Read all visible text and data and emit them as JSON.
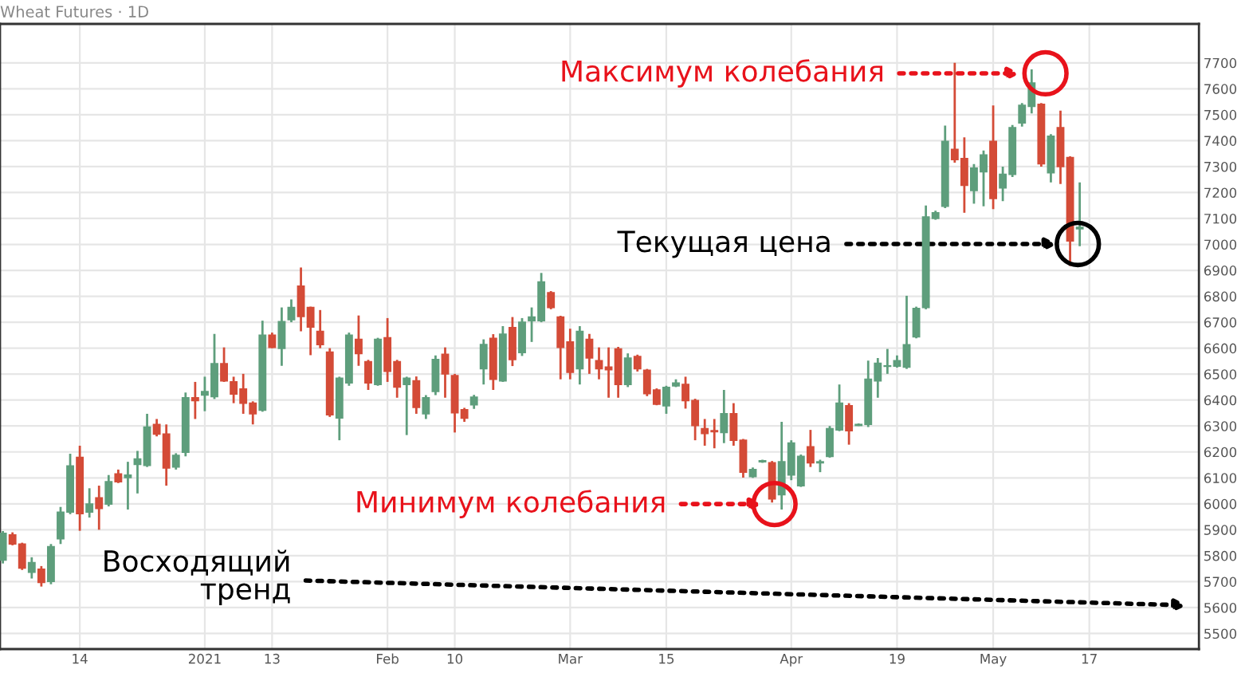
{
  "chart_data": {
    "type": "candlestick",
    "title": "Wheat Futures · 1D",
    "categories": [
      null,
      null,
      null,
      null,
      null,
      null,
      null,
      null,
      "14",
      null,
      null,
      null,
      null,
      null,
      null,
      null,
      null,
      null,
      null,
      null,
      null,
      "2021",
      null,
      null,
      null,
      null,
      null,
      null,
      "13",
      null,
      null,
      null,
      null,
      null,
      null,
      null,
      null,
      null,
      null,
      null,
      "Feb",
      null,
      null,
      null,
      null,
      null,
      null,
      "10",
      null,
      null,
      null,
      null,
      null,
      null,
      null,
      null,
      null,
      null,
      null,
      "Mar",
      null,
      null,
      null,
      null,
      null,
      null,
      null,
      null,
      null,
      "15",
      null,
      null,
      null,
      null,
      null,
      null,
      null,
      null,
      null,
      null,
      null,
      null,
      "Apr",
      null,
      null,
      null,
      null,
      null,
      null,
      null,
      null,
      null,
      null,
      "19",
      null,
      null,
      null,
      null,
      null,
      null,
      null,
      null,
      null,
      "May",
      null,
      null,
      null,
      null,
      null,
      null,
      null,
      null,
      null,
      "17",
      null,
      null,
      null,
      null,
      null,
      null,
      null,
      null,
      null,
      null,
      null
    ],
    "ohlc": [
      [
        5783,
        5895,
        5770,
        5886
      ],
      [
        5880,
        5890,
        5840,
        5845
      ],
      [
        5845,
        5850,
        5745,
        5752
      ],
      [
        5736,
        5794,
        5712,
        5773
      ],
      [
        5748,
        5760,
        5681,
        5697
      ],
      [
        5701,
        5845,
        5690,
        5835
      ],
      [
        5865,
        5988,
        5845,
        5968
      ],
      [
        5968,
        6193,
        5960,
        6146
      ],
      [
        6179,
        6224,
        5896,
        5962
      ],
      [
        5968,
        6060,
        5947,
        5999
      ],
      [
        6023,
        6070,
        5900,
        5982
      ],
      [
        5999,
        6111,
        5990,
        6085
      ],
      [
        6115,
        6132,
        6080,
        6085
      ],
      [
        6101,
        6162,
        5978,
        6111
      ],
      [
        6152,
        6204,
        6040,
        6173
      ],
      [
        6148,
        6347,
        6142,
        6296
      ],
      [
        6306,
        6327,
        6260,
        6269
      ],
      [
        6269,
        6306,
        6070,
        6138
      ],
      [
        6142,
        6195,
        6132,
        6187
      ],
      [
        6199,
        6429,
        6183,
        6409
      ],
      [
        6409,
        6470,
        6327,
        6398
      ],
      [
        6419,
        6490,
        6357,
        6433
      ],
      [
        6413,
        6655,
        6404,
        6540
      ],
      [
        6540,
        6603,
        6470,
        6474
      ],
      [
        6470,
        6490,
        6388,
        6423
      ],
      [
        6443,
        6501,
        6347,
        6388
      ],
      [
        6388,
        6395,
        6306,
        6347
      ],
      [
        6361,
        6706,
        6355,
        6650
      ],
      [
        6650,
        6660,
        6600,
        6603
      ],
      [
        6599,
        6757,
        6532,
        6702
      ],
      [
        6710,
        6788,
        6700,
        6757
      ],
      [
        6839,
        6911,
        6665,
        6722
      ],
      [
        6757,
        6760,
        6573,
        6681
      ],
      [
        6665,
        6747,
        6600,
        6614
      ],
      [
        6585,
        6600,
        6335,
        6343
      ],
      [
        6331,
        6490,
        6245,
        6484
      ],
      [
        6466,
        6660,
        6455,
        6650
      ],
      [
        6634,
        6726,
        6532,
        6579
      ],
      [
        6548,
        6555,
        6439,
        6466
      ],
      [
        6460,
        6640,
        6455,
        6634
      ],
      [
        6640,
        6716,
        6470,
        6511
      ],
      [
        6548,
        6555,
        6409,
        6450
      ],
      [
        6460,
        6490,
        6265,
        6484
      ],
      [
        6474,
        6491,
        6347,
        6372
      ],
      [
        6347,
        6419,
        6327,
        6409
      ],
      [
        6433,
        6572,
        6419,
        6556
      ],
      [
        6576,
        6603,
        6409,
        6501
      ],
      [
        6494,
        6501,
        6275,
        6351
      ],
      [
        6363,
        6370,
        6316,
        6330
      ],
      [
        6382,
        6420,
        6366,
        6411
      ],
      [
        6521,
        6634,
        6460,
        6614
      ],
      [
        6638,
        6654,
        6439,
        6480
      ],
      [
        6474,
        6685,
        6470,
        6654
      ],
      [
        6679,
        6720,
        6531,
        6556
      ],
      [
        6583,
        6716,
        6570,
        6700
      ],
      [
        6706,
        6757,
        6624,
        6720
      ],
      [
        6706,
        6890,
        6700,
        6855
      ],
      [
        6814,
        6820,
        6750,
        6757
      ],
      [
        6720,
        6725,
        6480,
        6603
      ],
      [
        6624,
        6675,
        6480,
        6507
      ],
      [
        6521,
        6685,
        6460,
        6665
      ],
      [
        6634,
        6655,
        6501,
        6562
      ],
      [
        6552,
        6603,
        6480,
        6521
      ],
      [
        6527,
        6603,
        6409,
        6517
      ],
      [
        6597,
        6605,
        6409,
        6460
      ],
      [
        6460,
        6580,
        6450,
        6562
      ],
      [
        6568,
        6575,
        6510,
        6521
      ],
      [
        6515,
        6520,
        6415,
        6425
      ],
      [
        6439,
        6445,
        6380,
        6384
      ],
      [
        6378,
        6455,
        6347,
        6449
      ],
      [
        6455,
        6480,
        6450,
        6466
      ],
      [
        6460,
        6490,
        6367,
        6398
      ],
      [
        6398,
        6405,
        6245,
        6302
      ],
      [
        6290,
        6327,
        6224,
        6271
      ],
      [
        6282,
        6327,
        6214,
        6278
      ],
      [
        6275,
        6439,
        6234,
        6347
      ],
      [
        6347,
        6388,
        6224,
        6245
      ],
      [
        6245,
        6250,
        6101,
        6122
      ],
      [
        6105,
        6140,
        6100,
        6132
      ],
      [
        6162,
        6170,
        6158,
        6166
      ],
      [
        6158,
        6165,
        6005,
        6019
      ],
      [
        6035,
        6316,
        5978,
        6162
      ],
      [
        6111,
        6245,
        6091,
        6234
      ],
      [
        6070,
        6190,
        6065,
        6183
      ],
      [
        6220,
        6285,
        6142,
        6158
      ],
      [
        6158,
        6170,
        6122,
        6162
      ],
      [
        6183,
        6300,
        6178,
        6290
      ],
      [
        6285,
        6460,
        6280,
        6388
      ],
      [
        6378,
        6388,
        6228,
        6282
      ],
      [
        6302,
        6310,
        6300,
        6306
      ],
      [
        6306,
        6552,
        6296,
        6480
      ],
      [
        6474,
        6562,
        6409,
        6542
      ],
      [
        6530,
        6597,
        6501,
        6532
      ],
      [
        6531,
        6572,
        6525,
        6552
      ],
      [
        6527,
        6802,
        6520,
        6613
      ],
      [
        6644,
        6760,
        6638,
        6753
      ],
      [
        6757,
        7150,
        6750,
        7106
      ],
      [
        7100,
        7130,
        7095,
        7122
      ],
      [
        7147,
        7458,
        7140,
        7397
      ],
      [
        7366,
        7700,
        7315,
        7327
      ],
      [
        7331,
        7413,
        7122,
        7228
      ],
      [
        7208,
        7310,
        7157,
        7294
      ],
      [
        7280,
        7362,
        7147,
        7345
      ],
      [
        7397,
        7536,
        7136,
        7177
      ],
      [
        7218,
        7300,
        7167,
        7270
      ],
      [
        7270,
        7460,
        7260,
        7450
      ],
      [
        7468,
        7545,
        7454,
        7536
      ],
      [
        7532,
        7675,
        7505,
        7622
      ],
      [
        7540,
        7545,
        7300,
        7311
      ],
      [
        7276,
        7425,
        7239,
        7417
      ],
      [
        7450,
        7516,
        7233,
        7300
      ],
      [
        7335,
        7340,
        6917,
        7013
      ],
      [
        7060,
        7239,
        6993,
        7066
      ],
      null,
      null,
      null,
      null,
      null,
      null,
      null,
      null,
      null,
      null,
      null,
      null
    ],
    "colors": [
      "#5e9e7c",
      "#d44b37",
      "#d44b37",
      "#5e9e7c",
      "#d44b37",
      "#5e9e7c",
      "#5e9e7c",
      "#5e9e7c",
      "#d44b37",
      "#5e9e7c",
      "#d44b37",
      "#5e9e7c",
      "#d44b37",
      "#5e9e7c",
      "#5e9e7c",
      "#5e9e7c",
      "#d44b37",
      "#d44b37",
      "#5e9e7c",
      "#5e9e7c",
      "#d44b37",
      "#5e9e7c",
      "#5e9e7c",
      "#d44b37",
      "#d44b37",
      "#d44b37",
      "#d44b37",
      "#5e9e7c",
      "#d44b37",
      "#5e9e7c",
      "#5e9e7c",
      "#d44b37",
      "#d44b37",
      "#d44b37",
      "#d44b37",
      "#5e9e7c",
      "#5e9e7c",
      "#d44b37",
      "#d44b37",
      "#5e9e7c",
      "#d44b37",
      "#d44b37",
      "#5e9e7c",
      "#d44b37",
      "#5e9e7c",
      "#5e9e7c",
      "#d44b37",
      "#d44b37",
      "#d44b37",
      "#5e9e7c",
      "#5e9e7c",
      "#d44b37",
      "#5e9e7c",
      "#d44b37",
      "#5e9e7c",
      "#5e9e7c",
      "#5e9e7c",
      "#d44b37",
      "#d44b37",
      "#d44b37",
      "#5e9e7c",
      "#d44b37",
      "#d44b37",
      "#d44b37",
      "#d44b37",
      "#5e9e7c",
      "#d44b37",
      "#d44b37",
      "#d44b37",
      "#5e9e7c",
      "#5e9e7c",
      "#d44b37",
      "#d44b37",
      "#d44b37",
      "#d44b37",
      "#5e9e7c",
      "#d44b37",
      "#d44b37",
      "#5e9e7c",
      "#5e9e7c",
      "#d44b37",
      "#5e9e7c",
      "#5e9e7c",
      "#5e9e7c",
      "#d44b37",
      "#5e9e7c",
      "#5e9e7c",
      "#5e9e7c",
      "#d44b37",
      "#5e9e7c",
      "#5e9e7c",
      "#5e9e7c",
      "#5e9e7c",
      "#5e9e7c",
      "#5e9e7c",
      "#5e9e7c",
      "#5e9e7c",
      "#5e9e7c",
      "#5e9e7c",
      "#d44b37",
      "#d44b37",
      "#5e9e7c",
      "#5e9e7c",
      "#d44b37",
      "#5e9e7c",
      "#5e9e7c",
      "#5e9e7c",
      "#5e9e7c",
      "#d44b37",
      "#5e9e7c",
      "#d44b37",
      "#d44b37",
      "#5e9e7c",
      null,
      null,
      null,
      null,
      null,
      null,
      null,
      null,
      null,
      null,
      null,
      null
    ],
    "ylim": [
      5440,
      7850
    ],
    "yticks": [
      5500,
      5600,
      5700,
      5800,
      5900,
      6000,
      6100,
      6200,
      6300,
      6400,
      6500,
      6600,
      6700,
      6800,
      6900,
      7000,
      7100,
      7200,
      7300,
      7400,
      7500,
      7600,
      7700
    ],
    "grid": true,
    "annotations": [
      "Максимум колебания",
      "Текущая цена",
      "Минимум колебания",
      "Восходящий\nтренд"
    ]
  }
}
